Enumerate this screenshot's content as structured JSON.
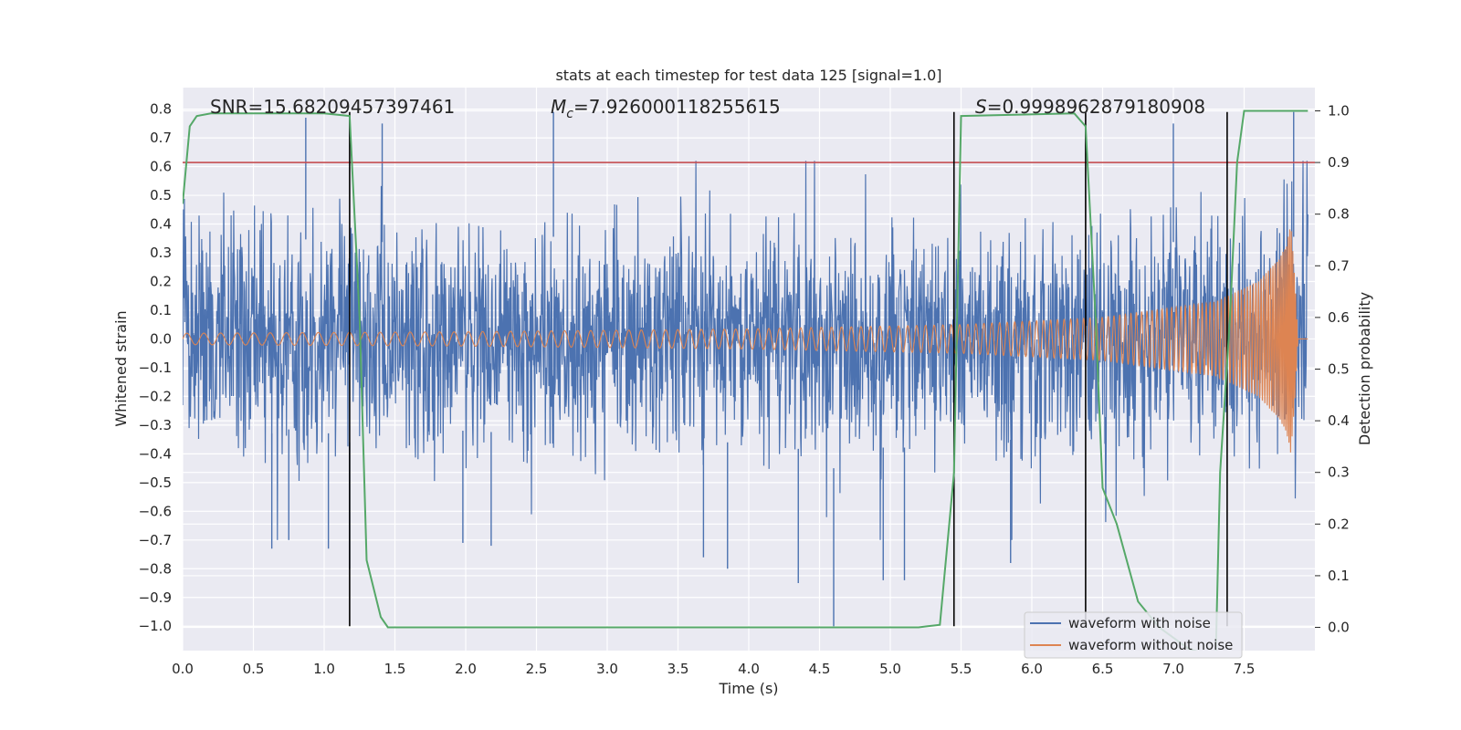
{
  "chart_data": {
    "type": "line",
    "title": "stats at each timestep for test data 125 [signal=1.0]",
    "xlabel": "Time (s)",
    "ylabel": "Whitened strain",
    "y2label": "Detection probability",
    "xlim": [
      0.0,
      8.0
    ],
    "ylim": [
      -1.085,
      0.875
    ],
    "y2lim": [
      -0.045,
      1.045
    ],
    "xticks": [
      0.0,
      0.5,
      1.0,
      1.5,
      2.0,
      2.5,
      3.0,
      3.5,
      4.0,
      4.5,
      5.0,
      5.5,
      6.0,
      6.5,
      7.0,
      7.5
    ],
    "xtick_labels": [
      "0.0",
      "0.5",
      "1.0",
      "1.5",
      "2.0",
      "2.5",
      "3.0",
      "3.5",
      "4.0",
      "4.5",
      "5.0",
      "5.5",
      "6.0",
      "6.5",
      "7.0",
      "7.5"
    ],
    "yticks": [
      0.8,
      0.7,
      0.6,
      0.5,
      0.4,
      0.3,
      0.2,
      0.1,
      0.0,
      -0.1,
      -0.2,
      -0.3,
      -0.4,
      -0.5,
      -0.6,
      -0.7,
      -0.8,
      -0.9,
      -1.0
    ],
    "ytick_labels": [
      "0.8",
      "0.7",
      "0.6",
      "0.5",
      "0.4",
      "0.3",
      "0.2",
      "0.1",
      "0.0",
      "−0.1",
      "−0.2",
      "−0.3",
      "−0.4",
      "−0.5",
      "−0.6",
      "−0.7",
      "−0.8",
      "−0.9",
      "−1.0"
    ],
    "y2ticks": [
      1.0,
      0.9,
      0.8,
      0.7,
      0.6,
      0.5,
      0.4,
      0.3,
      0.2,
      0.1,
      0.0
    ],
    "y2tick_labels": [
      "1.0",
      "0.9",
      "0.8",
      "0.7",
      "0.6",
      "0.5",
      "0.4",
      "0.3",
      "0.2",
      "0.1",
      "0.0"
    ],
    "annotations": {
      "snr": "SNR=15.68209457397461",
      "mc_symbol": "M",
      "mc_sub": "c",
      "mc_value": "=7.926000118255615",
      "s_symbol": "S",
      "s_value": "=0.9998962879180908"
    },
    "threshold_line": {
      "axis": "y2",
      "value": 0.9,
      "color": "#c44e52"
    },
    "vertical_lines": [
      {
        "x": 1.18,
        "y_from": -1.0,
        "y_to": 0.79
      },
      {
        "x": 5.45,
        "y_from": -1.0,
        "y_to": 0.79
      },
      {
        "x": 6.38,
        "y_from": -1.0,
        "y_to": 0.79
      },
      {
        "x": 7.38,
        "y_from": -1.0,
        "y_to": 0.79
      }
    ],
    "noise_envelope": {
      "name": "waveform with noise",
      "color": "#4c72b0",
      "band_min": -0.52,
      "band_max": 0.52,
      "notable_spikes": [
        {
          "x": 0.87,
          "y": 0.77
        },
        {
          "x": 1.41,
          "y": 0.75
        },
        {
          "x": 2.62,
          "y": 0.79
        },
        {
          "x": 7.0,
          "y": 0.75
        },
        {
          "x": 7.85,
          "y": 0.79
        },
        {
          "x": 4.6,
          "y": -1.0
        },
        {
          "x": 4.35,
          "y": -0.85
        },
        {
          "x": 4.95,
          "y": -0.84
        },
        {
          "x": 5.1,
          "y": -0.84
        },
        {
          "x": 1.18,
          "y": -0.8
        },
        {
          "x": 3.85,
          "y": -0.8
        },
        {
          "x": 5.85,
          "y": -0.78
        },
        {
          "x": 0.63,
          "y": -0.73
        },
        {
          "x": 1.03,
          "y": -0.73
        },
        {
          "x": 0.75,
          "y": -0.7
        },
        {
          "x": 1.98,
          "y": -0.71
        },
        {
          "x": 2.18,
          "y": -0.72
        },
        {
          "x": 3.68,
          "y": -0.76
        }
      ]
    },
    "signal_waveform": {
      "name": "waveform without noise",
      "color": "#dd8452",
      "envelope": [
        [
          0.0,
          0.02
        ],
        [
          2.0,
          0.025
        ],
        [
          4.0,
          0.035
        ],
        [
          5.5,
          0.05
        ],
        [
          6.5,
          0.075
        ],
        [
          7.3,
          0.13
        ],
        [
          7.6,
          0.2
        ],
        [
          7.75,
          0.28
        ],
        [
          7.8,
          0.33
        ],
        [
          7.83,
          0.4
        ],
        [
          7.86,
          0.2
        ],
        [
          7.88,
          0.0
        ],
        [
          7.95,
          0.0
        ]
      ],
      "end_time": 7.88
    },
    "probability_series": {
      "name": "detection probability",
      "color": "#55a868",
      "axis": "y2",
      "x": [
        0.0,
        0.05,
        0.1,
        0.2,
        1.0,
        1.18,
        1.25,
        1.3,
        1.4,
        1.45,
        5.2,
        5.35,
        5.45,
        5.5,
        6.3,
        6.38,
        6.45,
        6.5,
        6.6,
        6.75,
        6.9,
        7.0,
        7.1,
        7.2,
        7.3,
        7.33,
        7.4,
        7.45,
        7.5,
        7.6,
        7.95
      ],
      "y": [
        0.82,
        0.97,
        0.99,
        0.995,
        0.995,
        0.99,
        0.6,
        0.13,
        0.02,
        0.0,
        0.0,
        0.005,
        0.3,
        0.99,
        0.995,
        0.97,
        0.6,
        0.27,
        0.2,
        0.05,
        0.0,
        -0.02,
        -0.04,
        -0.05,
        -0.05,
        0.3,
        0.6,
        0.9,
        1.0,
        1.0,
        1.0
      ]
    },
    "legend": {
      "position": "lower-right",
      "entries": [
        {
          "label": "waveform with noise",
          "color": "#4c72b0"
        },
        {
          "label": "waveform without noise",
          "color": "#dd8452"
        }
      ]
    }
  }
}
